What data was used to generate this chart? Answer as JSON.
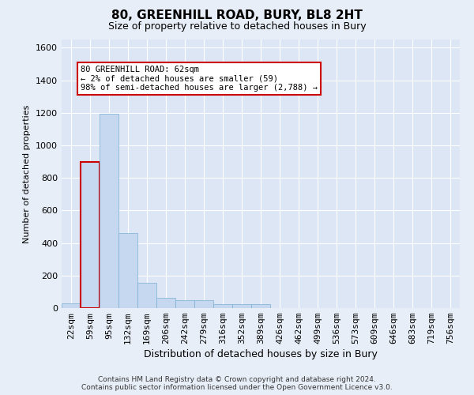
{
  "title": "80, GREENHILL ROAD, BURY, BL8 2HT",
  "subtitle": "Size of property relative to detached houses in Bury",
  "xlabel": "Distribution of detached houses by size in Bury",
  "ylabel": "Number of detached properties",
  "footer_line1": "Contains HM Land Registry data © Crown copyright and database right 2024.",
  "footer_line2": "Contains public sector information licensed under the Open Government Licence v3.0.",
  "bar_color": "#c5d8ef",
  "bar_edge_color": "#7bafd4",
  "highlight_bar_edge_color": "#cc0000",
  "annotation_box_edge_color": "#cc0000",
  "annotation_text": "80 GREENHILL ROAD: 62sqm\n← 2% of detached houses are smaller (59)\n98% of semi-detached houses are larger (2,788) →",
  "annotation_fontsize": 7.5,
  "background_color": "#e8eef7",
  "plot_bg_color": "#dce6f5",
  "grid_color": "#ffffff",
  "categories": [
    "22sqm",
    "59sqm",
    "95sqm",
    "132sqm",
    "169sqm",
    "206sqm",
    "242sqm",
    "279sqm",
    "316sqm",
    "352sqm",
    "389sqm",
    "426sqm",
    "462sqm",
    "499sqm",
    "536sqm",
    "573sqm",
    "609sqm",
    "646sqm",
    "683sqm",
    "719sqm",
    "756sqm"
  ],
  "values": [
    30,
    900,
    1195,
    460,
    155,
    65,
    50,
    50,
    25,
    25,
    25,
    0,
    0,
    0,
    0,
    0,
    0,
    0,
    0,
    0,
    0
  ],
  "ylim": [
    0,
    1650
  ],
  "highlight_index": 1,
  "bar_width": 1.0,
  "figsize": [
    6.0,
    5.0
  ],
  "dpi": 100
}
